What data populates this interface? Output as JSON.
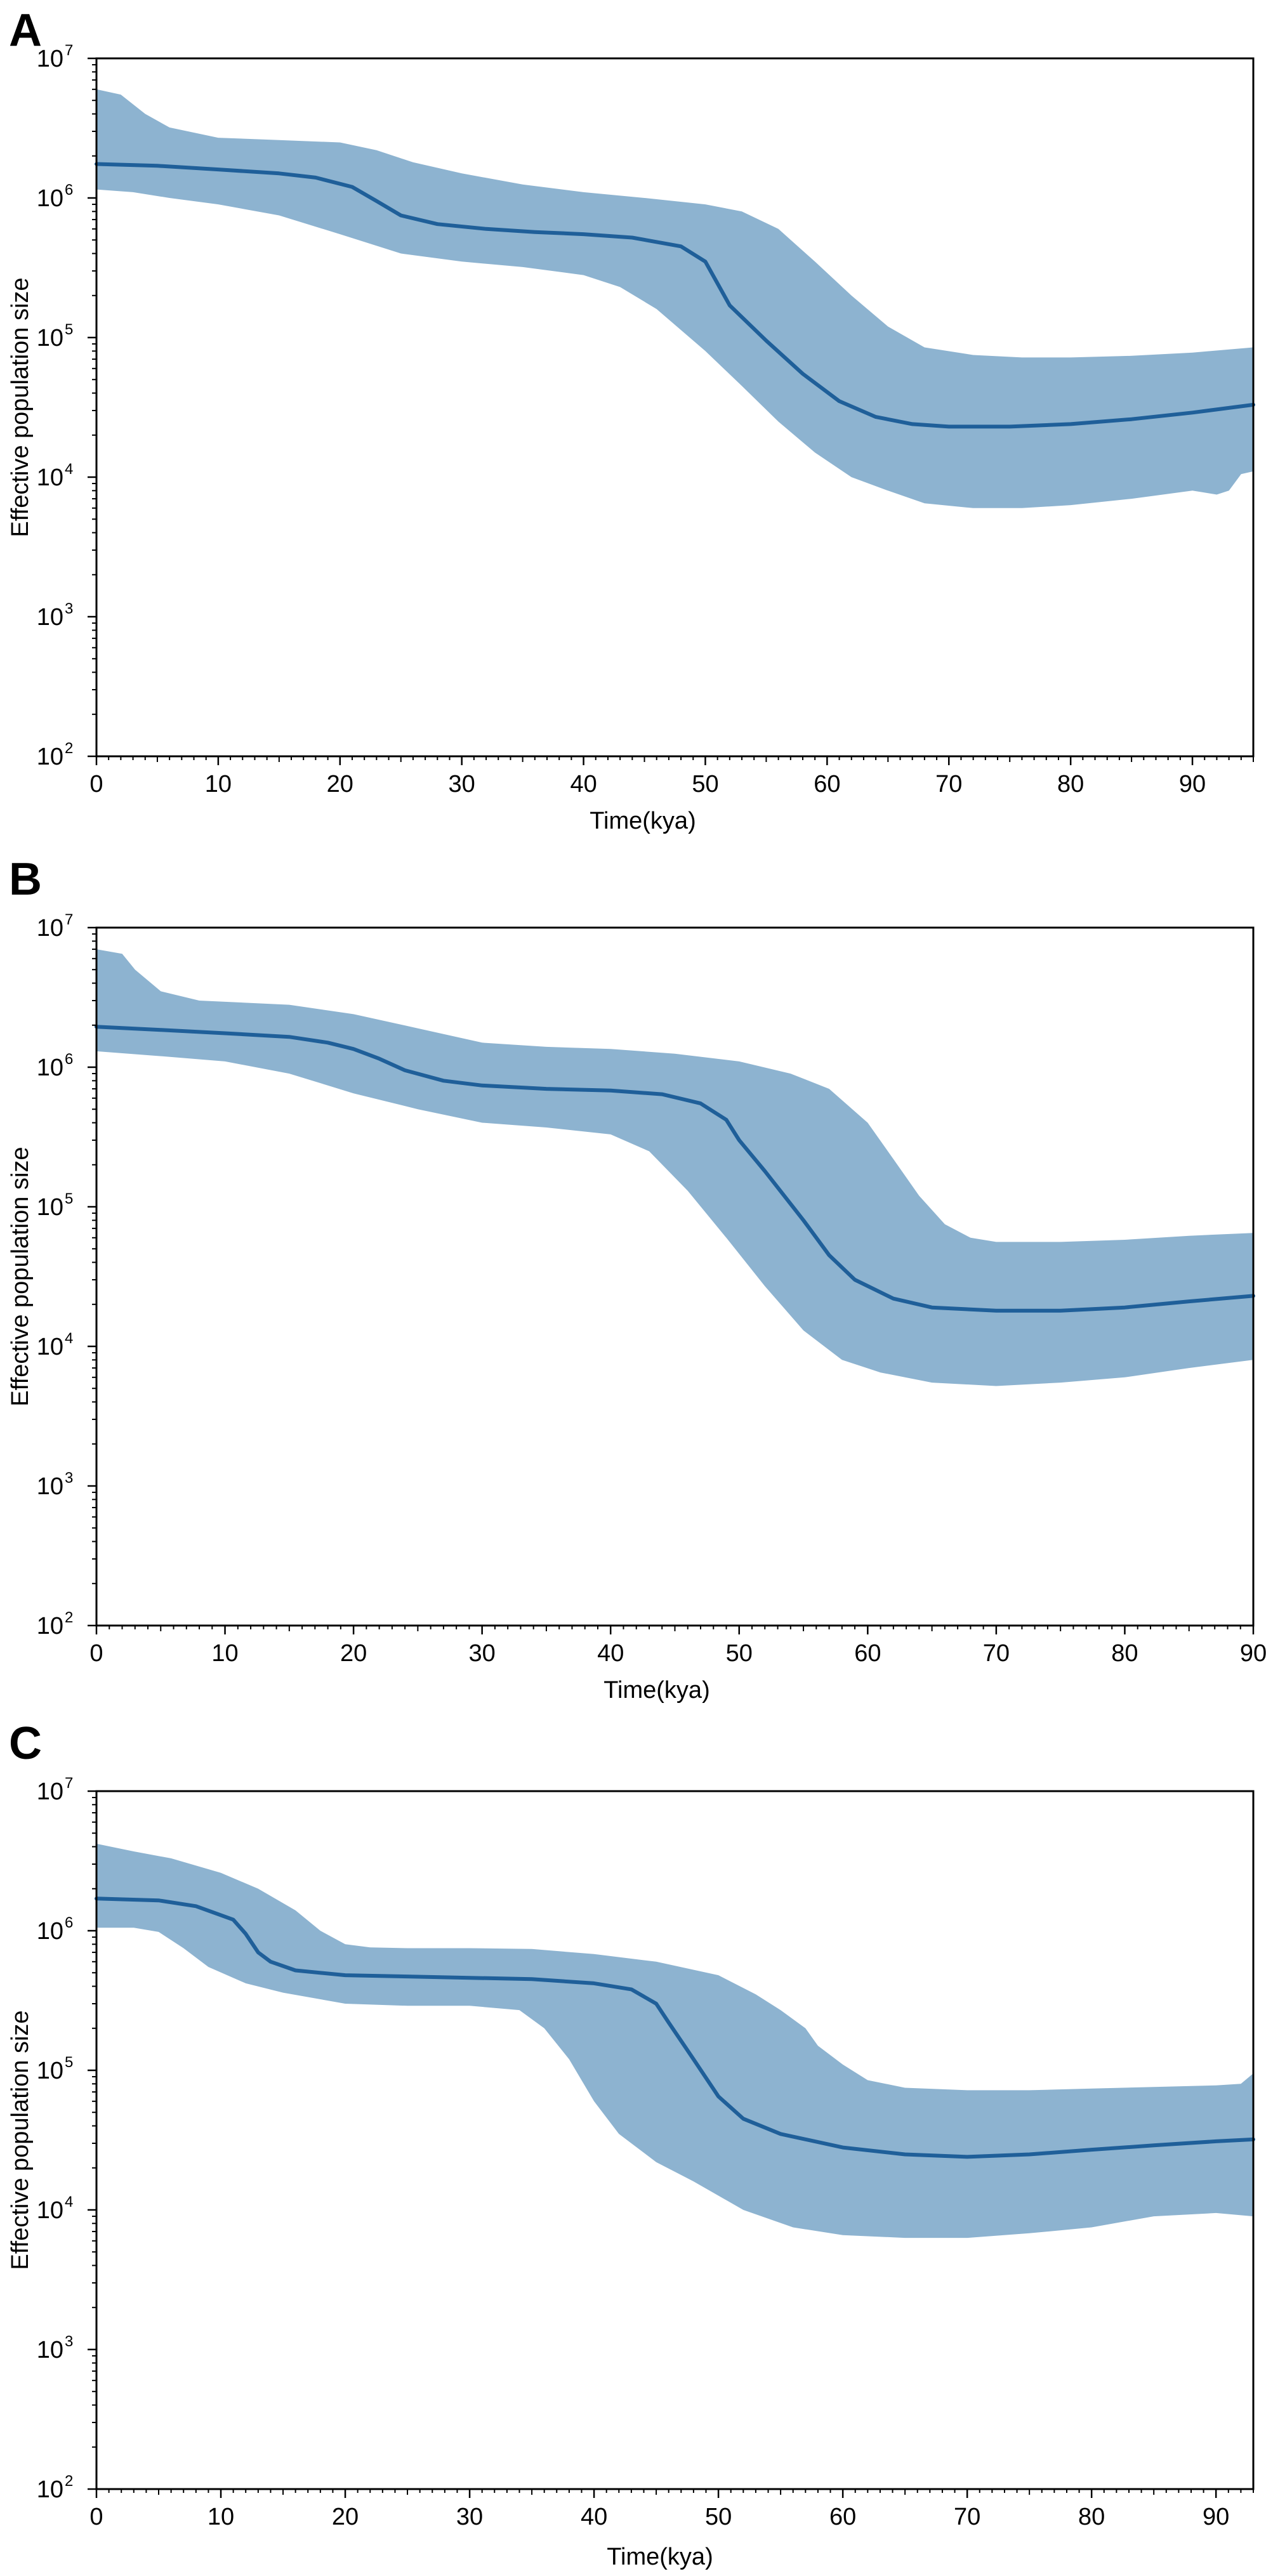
{
  "colors": {
    "band": "#8db3d0",
    "line": "#1f5f99",
    "axis": "#000000"
  },
  "chart_data": [
    {
      "type": "area",
      "panel_label": "A",
      "xlabel": "Time(kya)",
      "ylabel": "Effective population size",
      "yscale": "log",
      "xlim": [
        0,
        95
      ],
      "ylim": [
        100,
        10000000
      ],
      "x_ticks": [
        "0",
        "10",
        "20",
        "30",
        "40",
        "50",
        "60",
        "70",
        "80",
        "90"
      ],
      "x_tick_values": [
        0,
        10,
        20,
        30,
        40,
        50,
        60,
        70,
        80,
        90
      ],
      "y_ticks": [
        {
          "base": "10",
          "exp": "7",
          "value": 10000000
        },
        {
          "base": "10",
          "exp": "6",
          "value": 1000000
        },
        {
          "base": "10",
          "exp": "5",
          "value": 100000
        },
        {
          "base": "10",
          "exp": "4",
          "value": 10000
        },
        {
          "base": "10",
          "exp": "3",
          "value": 1000
        },
        {
          "base": "10",
          "exp": "2",
          "value": 100
        }
      ],
      "series": [
        {
          "name": "median",
          "x": [
            0,
            5,
            10,
            15,
            18,
            21,
            23,
            25,
            28,
            32,
            36,
            40,
            44,
            48,
            50,
            52,
            55,
            58,
            61,
            64,
            67,
            70,
            75,
            80,
            85,
            90,
            95
          ],
          "values": [
            1750000,
            1700000,
            1600000,
            1500000,
            1400000,
            1200000,
            950000,
            750000,
            650000,
            600000,
            570000,
            550000,
            520000,
            450000,
            350000,
            170000,
            95000,
            55000,
            35000,
            27000,
            24000,
            23000,
            23000,
            24000,
            26000,
            29000,
            33000
          ]
        },
        {
          "name": "upper",
          "x": [
            0,
            2,
            4,
            6,
            10,
            15,
            20,
            23,
            26,
            30,
            35,
            40,
            45,
            50,
            53,
            56,
            59,
            62,
            65,
            68,
            72,
            76,
            80,
            85,
            90,
            95
          ],
          "values": [
            6000000,
            5500000,
            4000000,
            3200000,
            2700000,
            2600000,
            2500000,
            2200000,
            1800000,
            1500000,
            1250000,
            1100000,
            1000000,
            900000,
            800000,
            600000,
            350000,
            200000,
            120000,
            85000,
            75000,
            72000,
            72000,
            74000,
            78000,
            85000
          ]
        },
        {
          "name": "lower",
          "x": [
            0,
            3,
            6,
            10,
            15,
            20,
            25,
            30,
            35,
            40,
            43,
            46,
            50,
            53,
            56,
            59,
            62,
            65,
            68,
            72,
            76,
            80,
            85,
            90,
            92,
            93,
            94,
            95
          ],
          "values": [
            1150000,
            1100000,
            1000000,
            900000,
            750000,
            550000,
            400000,
            350000,
            320000,
            280000,
            230000,
            160000,
            80000,
            45000,
            25000,
            15000,
            10000,
            8000,
            6500,
            6000,
            6000,
            6300,
            7000,
            8000,
            7500,
            8000,
            10500,
            11000
          ]
        }
      ]
    },
    {
      "type": "area",
      "panel_label": "B",
      "xlabel": "Time(kya)",
      "ylabel": "Effective population size",
      "yscale": "log",
      "xlim": [
        0,
        90
      ],
      "ylim": [
        100,
        10000000
      ],
      "x_ticks": [
        "0",
        "10",
        "20",
        "30",
        "40",
        "50",
        "60",
        "70",
        "80",
        "90"
      ],
      "x_tick_values": [
        0,
        10,
        20,
        30,
        40,
        50,
        60,
        70,
        80,
        90
      ],
      "y_ticks": [
        {
          "base": "10",
          "exp": "7",
          "value": 10000000
        },
        {
          "base": "10",
          "exp": "6",
          "value": 1000000
        },
        {
          "base": "10",
          "exp": "5",
          "value": 100000
        },
        {
          "base": "10",
          "exp": "4",
          "value": 10000
        },
        {
          "base": "10",
          "exp": "3",
          "value": 1000
        },
        {
          "base": "10",
          "exp": "2",
          "value": 100
        }
      ],
      "series": [
        {
          "name": "median",
          "x": [
            0,
            5,
            10,
            15,
            18,
            20,
            22,
            24,
            27,
            30,
            35,
            40,
            44,
            47,
            49,
            50,
            52,
            55,
            57,
            59,
            62,
            65,
            70,
            75,
            80,
            85,
            90
          ],
          "values": [
            1950000,
            1850000,
            1750000,
            1650000,
            1500000,
            1350000,
            1150000,
            950000,
            800000,
            740000,
            700000,
            680000,
            640000,
            550000,
            420000,
            300000,
            180000,
            80000,
            45000,
            30000,
            22000,
            19000,
            18000,
            18000,
            19000,
            21000,
            23000
          ]
        },
        {
          "name": "upper",
          "x": [
            0,
            2,
            3,
            5,
            8,
            15,
            20,
            25,
            30,
            35,
            40,
            45,
            50,
            54,
            57,
            60,
            62,
            64,
            66,
            68,
            70,
            75,
            80,
            85,
            90
          ],
          "values": [
            7000000,
            6500000,
            5000000,
            3500000,
            3000000,
            2800000,
            2400000,
            1900000,
            1500000,
            1400000,
            1350000,
            1250000,
            1100000,
            900000,
            700000,
            400000,
            220000,
            120000,
            75000,
            60000,
            56000,
            56000,
            58000,
            62000,
            65000
          ]
        },
        {
          "name": "lower",
          "x": [
            0,
            5,
            10,
            15,
            20,
            25,
            30,
            35,
            40,
            43,
            46,
            49,
            52,
            55,
            58,
            61,
            65,
            70,
            75,
            80,
            85,
            90
          ],
          "values": [
            1300000,
            1200000,
            1100000,
            900000,
            650000,
            500000,
            400000,
            370000,
            330000,
            250000,
            130000,
            60000,
            27000,
            13000,
            8000,
            6500,
            5500,
            5200,
            5500,
            6000,
            7000,
            8000
          ]
        }
      ]
    },
    {
      "type": "area",
      "panel_label": "C",
      "xlabel": "Time(kya)",
      "ylabel": "Effective population size",
      "yscale": "log",
      "xlim": [
        0,
        93
      ],
      "ylim": [
        100,
        10000000
      ],
      "x_ticks": [
        "0",
        "10",
        "20",
        "30",
        "40",
        "50",
        "60",
        "70",
        "80",
        "90"
      ],
      "x_tick_values": [
        0,
        10,
        20,
        30,
        40,
        50,
        60,
        70,
        80,
        90
      ],
      "y_ticks": [
        {
          "base": "10",
          "exp": "7",
          "value": 10000000
        },
        {
          "base": "10",
          "exp": "6",
          "value": 1000000
        },
        {
          "base": "10",
          "exp": "5",
          "value": 100000
        },
        {
          "base": "10",
          "exp": "4",
          "value": 10000
        },
        {
          "base": "10",
          "exp": "3",
          "value": 1000
        },
        {
          "base": "10",
          "exp": "2",
          "value": 100
        }
      ],
      "series": [
        {
          "name": "median",
          "x": [
            0,
            5,
            8,
            11,
            12,
            13,
            14,
            16,
            20,
            25,
            30,
            35,
            40,
            43,
            45,
            46,
            48,
            50,
            52,
            55,
            60,
            65,
            70,
            75,
            80,
            85,
            90,
            93
          ],
          "values": [
            1700000,
            1650000,
            1500000,
            1200000,
            950000,
            700000,
            600000,
            520000,
            480000,
            470000,
            460000,
            450000,
            420000,
            380000,
            300000,
            220000,
            120000,
            65000,
            45000,
            35000,
            28000,
            25000,
            24000,
            25000,
            27000,
            29000,
            31000,
            32000
          ]
        },
        {
          "name": "upper",
          "x": [
            0,
            3,
            6,
            10,
            13,
            16,
            18,
            20,
            22,
            25,
            30,
            35,
            40,
            45,
            50,
            53,
            55,
            57,
            58,
            60,
            62,
            65,
            70,
            75,
            80,
            85,
            90,
            92,
            93
          ],
          "values": [
            4200000,
            3700000,
            3300000,
            2600000,
            2000000,
            1400000,
            1000000,
            800000,
            760000,
            750000,
            750000,
            740000,
            680000,
            600000,
            480000,
            350000,
            270000,
            200000,
            150000,
            110000,
            85000,
            75000,
            72000,
            72000,
            74000,
            76000,
            78000,
            80000,
            95000
          ]
        },
        {
          "name": "lower",
          "x": [
            0,
            3,
            5,
            7,
            9,
            12,
            15,
            20,
            25,
            30,
            34,
            36,
            38,
            40,
            42,
            45,
            48,
            52,
            56,
            60,
            65,
            70,
            75,
            80,
            85,
            90,
            93
          ],
          "values": [
            1050000,
            1050000,
            980000,
            750000,
            550000,
            420000,
            360000,
            300000,
            290000,
            290000,
            270000,
            200000,
            120000,
            60000,
            35000,
            22000,
            16000,
            10000,
            7500,
            6600,
            6300,
            6300,
            6800,
            7500,
            9000,
            9500,
            9000
          ]
        }
      ]
    }
  ]
}
